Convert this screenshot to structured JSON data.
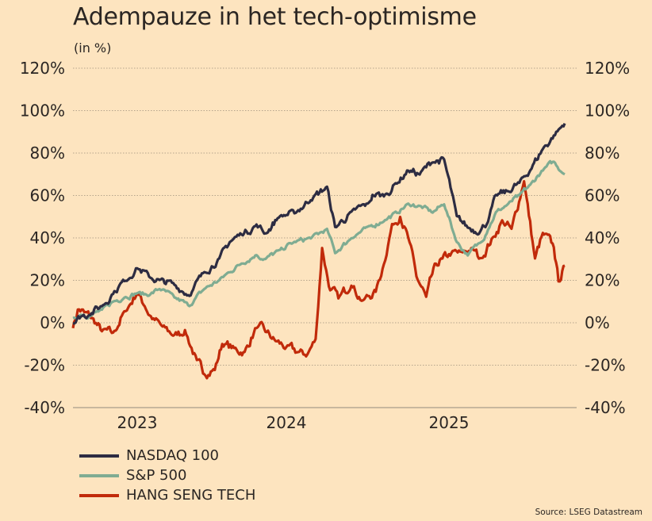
{
  "chart_data": {
    "type": "line",
    "title": "Adempauze in het tech-optimisme",
    "subtitle": "(in %)",
    "xlabel": "",
    "ylabel": "",
    "x_unit": "year (decimal)",
    "xlim": [
      2022.6,
      2025.74
    ],
    "ylim": [
      -40,
      120
    ],
    "yticks": [
      120,
      100,
      80,
      60,
      40,
      20,
      0,
      -20,
      -40
    ],
    "ytick_labels": [
      "120%",
      "100%",
      "80%",
      "60%",
      "40%",
      "20%",
      "0%",
      "-20%",
      "-40%"
    ],
    "xticks": [
      2023,
      2024,
      2025
    ],
    "xtick_labels": [
      "2023",
      "2024",
      "2025"
    ],
    "grid": "horizontal dotted",
    "axes": "left and right",
    "legend_position": "bottom-left",
    "series": [
      {
        "name": "NASDAQ 100",
        "color": "#2d2c42",
        "x": [
          2022.6,
          2022.65,
          2022.7,
          2022.78,
          2022.85,
          2022.92,
          2023.0,
          2023.08,
          2023.15,
          2023.25,
          2023.35,
          2023.45,
          2023.55,
          2023.62,
          2023.7,
          2023.8,
          2023.86,
          2023.95,
          2024.05,
          2024.15,
          2024.25,
          2024.3,
          2024.4,
          2024.5,
          2024.53,
          2024.6,
          2024.68,
          2024.75,
          2024.82,
          2024.9,
          2024.97,
          2025.05,
          2025.12,
          2025.2,
          2025.25,
          2025.3,
          2025.38,
          2025.45,
          2025.52,
          2025.6,
          2025.67,
          2025.74
        ],
        "values": [
          0,
          3,
          4,
          8,
          14,
          20,
          26,
          22,
          20,
          18,
          13,
          24,
          30,
          38,
          42,
          46,
          42,
          50,
          52,
          58,
          64,
          45,
          52,
          56,
          60,
          60,
          66,
          72,
          70,
          76,
          77,
          50,
          45,
          43,
          48,
          60,
          62,
          66,
          72,
          82,
          88,
          94
        ]
      },
      {
        "name": "S&P 500",
        "color": "#7fac92",
        "x": [
          2022.6,
          2022.65,
          2022.7,
          2022.78,
          2022.85,
          2022.92,
          2023.0,
          2023.08,
          2023.15,
          2023.25,
          2023.35,
          2023.45,
          2023.55,
          2023.62,
          2023.7,
          2023.8,
          2023.86,
          2023.95,
          2024.05,
          2024.15,
          2024.25,
          2024.3,
          2024.4,
          2024.5,
          2024.6,
          2024.68,
          2024.75,
          2024.82,
          2024.9,
          2024.97,
          2025.05,
          2025.12,
          2025.2,
          2025.25,
          2025.3,
          2025.38,
          2025.45,
          2025.52,
          2025.6,
          2025.67,
          2025.74
        ],
        "values": [
          2,
          4,
          3,
          6,
          10,
          12,
          14,
          13,
          16,
          12,
          8,
          16,
          20,
          24,
          28,
          32,
          30,
          34,
          38,
          40,
          44,
          33,
          40,
          45,
          48,
          52,
          56,
          55,
          52,
          56,
          38,
          32,
          38,
          44,
          52,
          56,
          60,
          65,
          72,
          76,
          70
        ]
      },
      {
        "name": "HANG SENG TECH",
        "color": "#c12a0a",
        "x": [
          2022.6,
          2022.63,
          2022.67,
          2022.72,
          2022.78,
          2022.85,
          2022.92,
          2023.0,
          2023.05,
          2023.1,
          2023.17,
          2023.25,
          2023.32,
          2023.4,
          2023.45,
          2023.52,
          2023.57,
          2023.65,
          2023.72,
          2023.8,
          2023.86,
          2023.92,
          2024.0,
          2024.08,
          2024.13,
          2024.18,
          2024.22,
          2024.27,
          2024.32,
          2024.4,
          2024.47,
          2024.55,
          2024.6,
          2024.65,
          2024.7,
          2024.75,
          2024.8,
          2024.86,
          2024.92,
          2024.96,
          2025.0,
          2025.08,
          2025.15,
          2025.2,
          2025.28,
          2025.34,
          2025.4,
          2025.48,
          2025.55,
          2025.6,
          2025.67,
          2025.7,
          2025.74
        ],
        "values": [
          -2,
          6,
          5,
          2,
          -4,
          -5,
          5,
          14,
          8,
          2,
          -2,
          -6,
          -4,
          -18,
          -24,
          -22,
          -10,
          -12,
          -14,
          -2,
          -4,
          -8,
          -12,
          -14,
          -15,
          -8,
          35,
          15,
          12,
          18,
          10,
          15,
          28,
          46,
          50,
          40,
          22,
          12,
          28,
          30,
          32,
          33,
          35,
          30,
          40,
          48,
          44,
          67,
          30,
          42,
          36,
          20,
          27
        ]
      }
    ]
  },
  "source": "Source: LSEG Datastream"
}
